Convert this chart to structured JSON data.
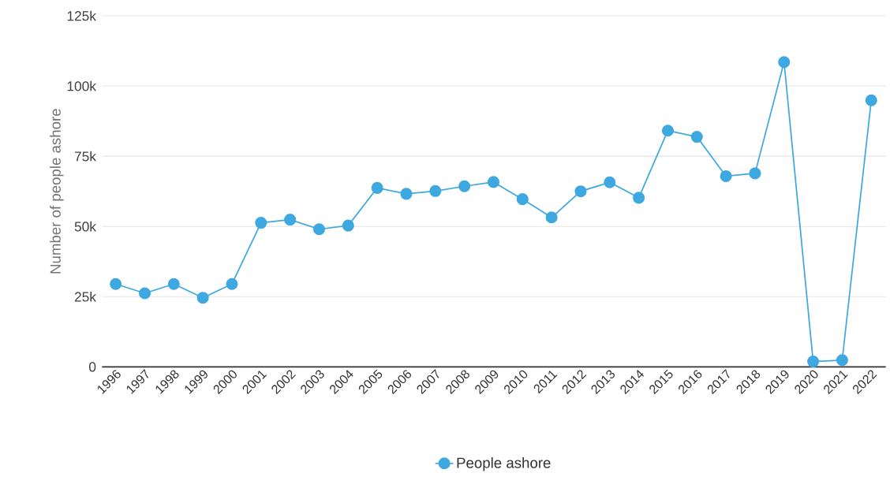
{
  "chart_data": {
    "type": "line",
    "ylabel": "Number of people ashore",
    "categories": [
      "1996",
      "1997",
      "1998",
      "1999",
      "2000",
      "2001",
      "2002",
      "2003",
      "2004",
      "2005",
      "2006",
      "2007",
      "2008",
      "2009",
      "2010",
      "2011",
      "2012",
      "2013",
      "2014",
      "2015",
      "2016",
      "2017",
      "2018",
      "2019",
      "2020",
      "2021",
      "2022"
    ],
    "series": [
      {
        "name": "People ashore",
        "color": "#3ea8e0",
        "values": [
          29500,
          26200,
          29500,
          24600,
          29500,
          51300,
          52400,
          49000,
          50300,
          63700,
          61600,
          62600,
          64300,
          65800,
          59700,
          53200,
          62500,
          65700,
          60200,
          84100,
          81900,
          67900,
          68900,
          108500,
          1900,
          2400,
          94900
        ]
      }
    ],
    "ylim": [
      0,
      125000
    ],
    "yticks": [
      {
        "value": 0,
        "label": "0"
      },
      {
        "value": 25000,
        "label": "25k"
      },
      {
        "value": 50000,
        "label": "50k"
      },
      {
        "value": 75000,
        "label": "75k"
      },
      {
        "value": 100000,
        "label": "100k"
      },
      {
        "value": 125000,
        "label": "125k"
      }
    ],
    "grid": "y",
    "legend": "bottom",
    "marker": "circle",
    "line_style": "solid"
  }
}
